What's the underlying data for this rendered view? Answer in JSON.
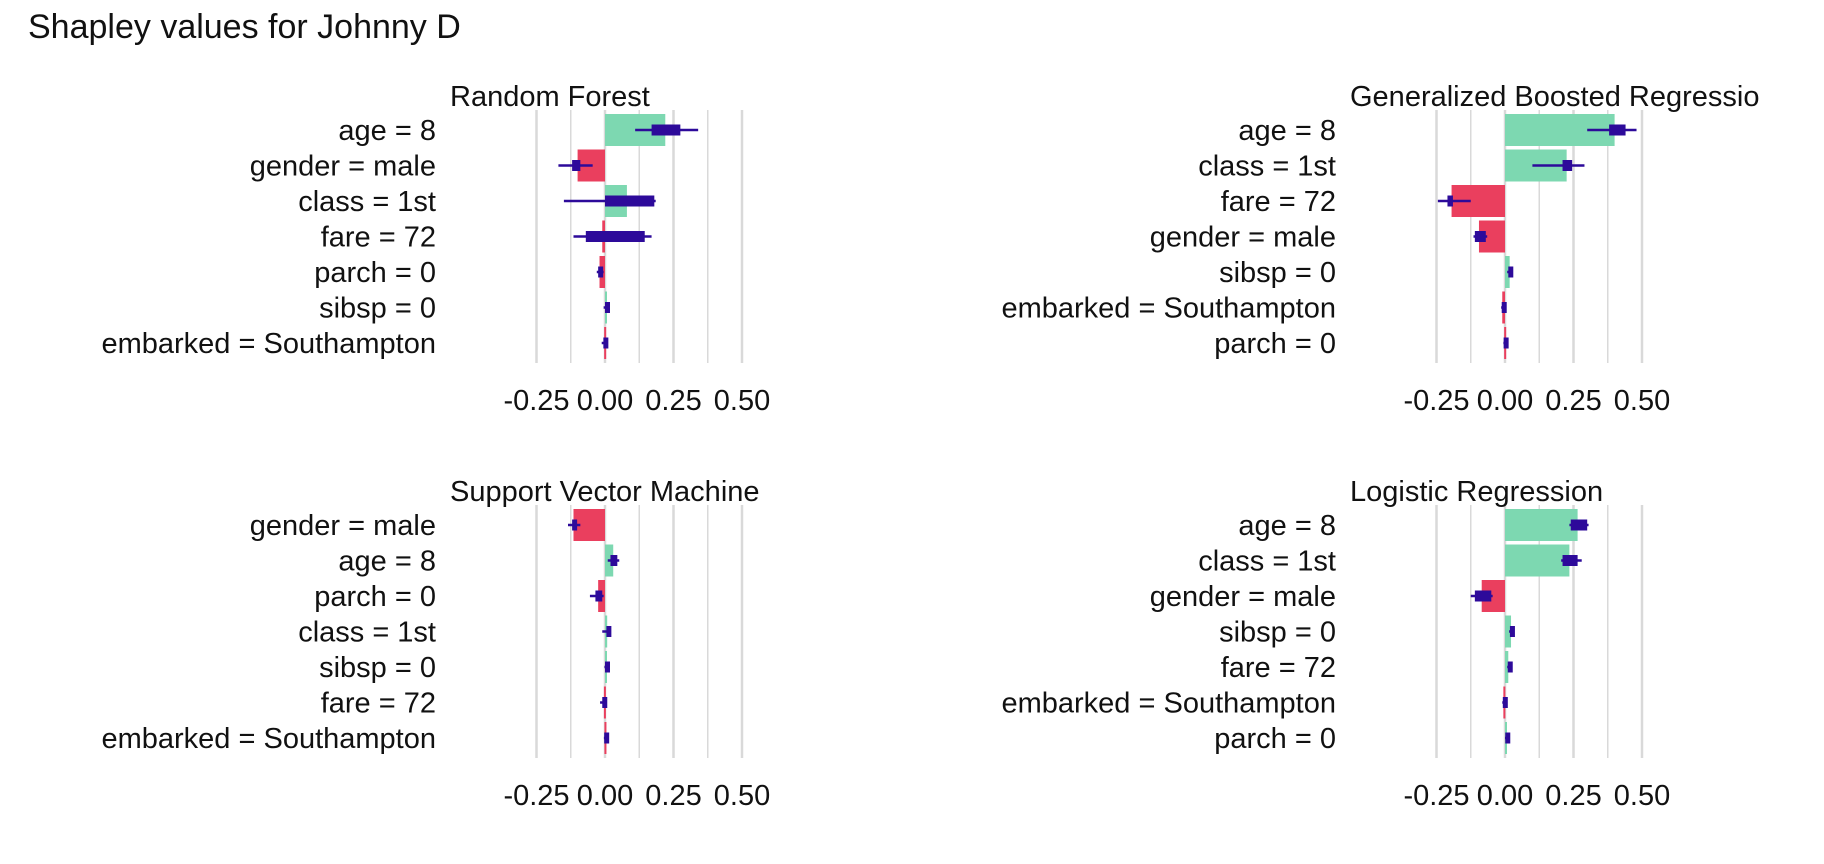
{
  "title": "Shapley values for Johnny D",
  "colors": {
    "positive": "#7dd8b1",
    "negative": "#ea3f5e",
    "interval": "#2d0a9a",
    "grid": "#d9d9d9"
  },
  "chart_data": [
    {
      "type": "bar",
      "title": "Random Forest",
      "xlim": [
        -0.25,
        0.5
      ],
      "ticks": [
        "-0.25",
        "0.00",
        "0.25",
        "0.50"
      ],
      "grid": true,
      "features": [
        {
          "label": "age = 8",
          "value": 0.22,
          "box": [
            0.17,
            0.275
          ],
          "whisker": [
            0.11,
            0.34
          ]
        },
        {
          "label": "gender = male",
          "value": -0.1,
          "box": [
            -0.12,
            -0.09
          ],
          "whisker": [
            -0.17,
            -0.045
          ]
        },
        {
          "label": "class = 1st",
          "value": 0.08,
          "box": [
            0.0,
            0.18
          ],
          "whisker": [
            -0.15,
            0.185
          ]
        },
        {
          "label": "fare = 72",
          "value": -0.01,
          "box": [
            -0.07,
            0.145
          ],
          "whisker": [
            -0.115,
            0.17
          ]
        },
        {
          "label": "parch = 0",
          "value": -0.02,
          "box": [
            -0.025,
            -0.01
          ],
          "whisker": [
            -0.03,
            -0.005
          ]
        },
        {
          "label": "sibsp = 0",
          "value": 0.003,
          "box": [
            0.0,
            0.008
          ],
          "whisker": [
            -0.005,
            0.012
          ]
        },
        {
          "label": "embarked = Southampton",
          "value": -0.003,
          "box": [
            -0.006,
            0.0
          ],
          "whisker": [
            -0.012,
            0.005
          ]
        }
      ]
    },
    {
      "type": "bar",
      "title": "Generalized Boosted Regressio",
      "xlim": [
        -0.25,
        0.5
      ],
      "ticks": [
        "-0.25",
        "0.00",
        "0.25",
        "0.50"
      ],
      "grid": true,
      "features": [
        {
          "label": "age = 8",
          "value": 0.4,
          "box": [
            0.38,
            0.44
          ],
          "whisker": [
            0.3,
            0.48
          ]
        },
        {
          "label": "class = 1st",
          "value": 0.225,
          "box": [
            0.21,
            0.245
          ],
          "whisker": [
            0.1,
            0.29
          ]
        },
        {
          "label": "fare = 72",
          "value": -0.195,
          "box": [
            -0.21,
            -0.19
          ],
          "whisker": [
            -0.245,
            -0.125
          ]
        },
        {
          "label": "gender = male",
          "value": -0.095,
          "box": [
            -0.11,
            -0.07
          ],
          "whisker": [
            -0.115,
            -0.065
          ]
        },
        {
          "label": "sibsp = 0",
          "value": 0.017,
          "box": [
            0.012,
            0.02
          ],
          "whisker": [
            0.008,
            0.024
          ]
        },
        {
          "label": "embarked = Southampton",
          "value": -0.01,
          "box": [
            -0.012,
            -0.005
          ],
          "whisker": [
            -0.014,
            -0.003
          ]
        },
        {
          "label": "parch = 0",
          "value": -0.003,
          "box": [
            -0.005,
            0.0
          ],
          "whisker": [
            -0.006,
            0.002
          ]
        }
      ]
    },
    {
      "type": "bar",
      "title": "Support Vector Machine",
      "xlim": [
        -0.25,
        0.5
      ],
      "ticks": [
        "-0.25",
        "0.00",
        "0.25",
        "0.50"
      ],
      "grid": true,
      "features": [
        {
          "label": "gender = male",
          "value": -0.115,
          "box": [
            -0.12,
            -0.112
          ],
          "whisker": [
            -0.135,
            -0.09
          ]
        },
        {
          "label": "age = 8",
          "value": 0.03,
          "box": [
            0.02,
            0.045
          ],
          "whisker": [
            0.01,
            0.052
          ]
        },
        {
          "label": "parch = 0",
          "value": -0.025,
          "box": [
            -0.035,
            -0.01
          ],
          "whisker": [
            -0.055,
            -0.005
          ]
        },
        {
          "label": "class = 1st",
          "value": 0.008,
          "box": [
            0.005,
            0.018
          ],
          "whisker": [
            -0.01,
            0.02
          ]
        },
        {
          "label": "sibsp = 0",
          "value": 0.006,
          "box": [
            0.0,
            0.012
          ],
          "whisker": [
            -0.002,
            0.014
          ]
        },
        {
          "label": "fare = 72",
          "value": -0.004,
          "box": [
            -0.01,
            0.0
          ],
          "whisker": [
            -0.018,
            0.005
          ]
        },
        {
          "label": "embarked = Southampton",
          "value": -0.002,
          "box": [
            -0.003,
            0.002
          ],
          "whisker": [
            -0.004,
            0.003
          ]
        }
      ]
    },
    {
      "type": "bar",
      "title": "Logistic Regression",
      "xlim": [
        -0.25,
        0.5
      ],
      "ticks": [
        "-0.25",
        "0.00",
        "0.25",
        "0.50"
      ],
      "grid": true,
      "features": [
        {
          "label": "age = 8",
          "value": 0.265,
          "box": [
            0.24,
            0.3
          ],
          "whisker": [
            0.235,
            0.305
          ]
        },
        {
          "label": "class = 1st",
          "value": 0.235,
          "box": [
            0.21,
            0.265
          ],
          "whisker": [
            0.205,
            0.28
          ]
        },
        {
          "label": "gender = male",
          "value": -0.085,
          "box": [
            -0.11,
            -0.05
          ],
          "whisker": [
            -0.125,
            -0.045
          ]
        },
        {
          "label": "sibsp = 0",
          "value": 0.022,
          "box": [
            0.018,
            0.026
          ],
          "whisker": [
            0.015,
            0.03
          ]
        },
        {
          "label": "fare = 72",
          "value": 0.012,
          "box": [
            0.01,
            0.016
          ],
          "whisker": [
            0.008,
            0.018
          ]
        },
        {
          "label": "embarked = Southampton",
          "value": -0.006,
          "box": [
            -0.008,
            -0.003
          ],
          "whisker": [
            -0.01,
            -0.002
          ]
        },
        {
          "label": "parch = 0",
          "value": 0.003,
          "box": [
            0.001,
            0.005
          ],
          "whisker": [
            0.0,
            0.006
          ]
        }
      ]
    }
  ]
}
